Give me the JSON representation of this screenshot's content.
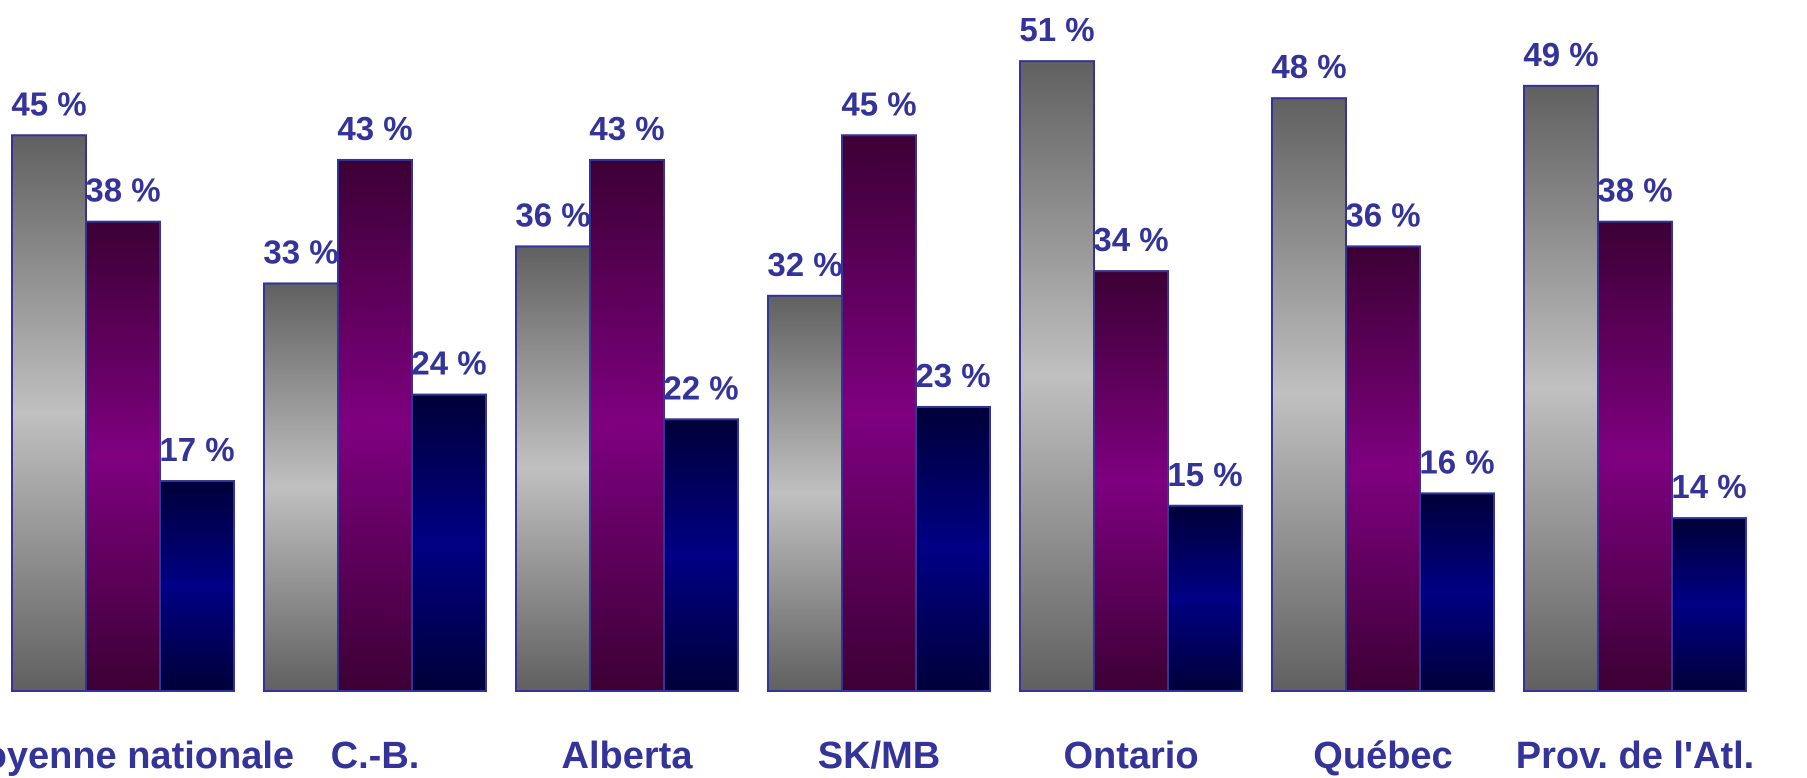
{
  "chart_data": {
    "type": "bar",
    "title": "",
    "xlabel": "",
    "ylabel": "",
    "ylim": [
      0,
      51
    ],
    "grid": false,
    "legend": "none",
    "categories": [
      "Moyenne nationale",
      "C.-B.",
      "Alberta",
      "SK/MB",
      "Ontario",
      "Québec",
      "Prov. de l'Atl."
    ],
    "series": [
      {
        "values": [
          45,
          33,
          36,
          32,
          51,
          48,
          49
        ],
        "color": "#b8b8b8"
      },
      {
        "values": [
          38,
          43,
          43,
          45,
          34,
          36,
          38
        ],
        "color": "#800080"
      },
      {
        "values": [
          17,
          24,
          22,
          23,
          15,
          16,
          14
        ],
        "color": "#000080"
      }
    ],
    "value_suffix": " %",
    "label_color": "#333399"
  }
}
